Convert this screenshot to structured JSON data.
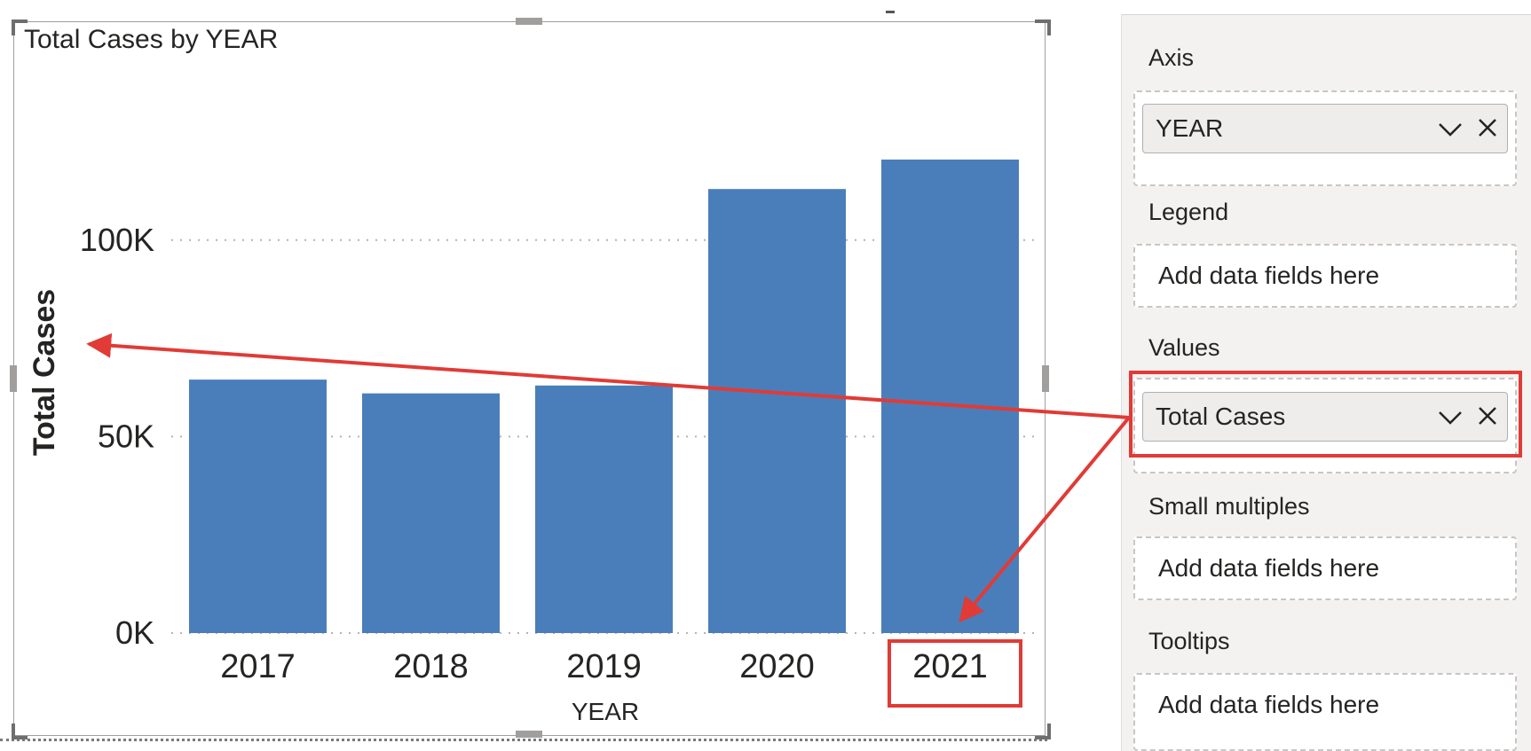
{
  "visual": {
    "title": "Total Cases by YEAR"
  },
  "chart_data": {
    "type": "bar",
    "title": "Total Cases by YEAR",
    "xlabel": "YEAR",
    "ylabel": "Total Cases",
    "categories": [
      "2017",
      "2018",
      "2019",
      "2020",
      "2021"
    ],
    "values": [
      64500,
      61000,
      63000,
      113000,
      120500
    ],
    "ylim": [
      0,
      125000
    ],
    "yticks": [
      0,
      50000,
      100000
    ],
    "ytick_labels": [
      "0K",
      "50K",
      "100K"
    ],
    "grid": "horizontal dotted",
    "bar_color": "#4a7ebb"
  },
  "fields_pane": {
    "axis": {
      "label": "Axis",
      "field": "YEAR"
    },
    "legend": {
      "label": "Legend",
      "placeholder": "Add data fields here"
    },
    "values": {
      "label": "Values",
      "field": "Total Cases"
    },
    "small_multiples": {
      "label": "Small multiples",
      "placeholder": "Add data fields here"
    },
    "tooltips": {
      "label": "Tooltips",
      "placeholder": "Add data fields here"
    }
  },
  "colors": {
    "annotation_red": "#e03b36",
    "bar_blue": "#4a7ebb",
    "pane_bg": "#f3f2f1"
  },
  "icons": [
    "chevron-down-icon",
    "close-icon",
    "arrow-icon"
  ]
}
